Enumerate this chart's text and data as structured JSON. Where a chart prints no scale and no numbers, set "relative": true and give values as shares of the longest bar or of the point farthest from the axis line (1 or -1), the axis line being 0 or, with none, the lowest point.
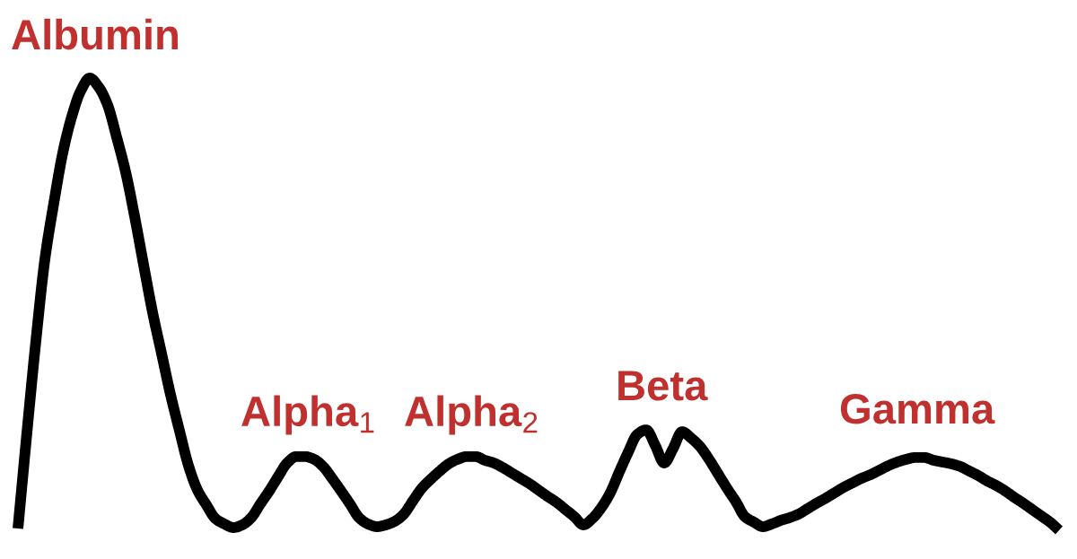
{
  "chart_data": {
    "type": "line",
    "relative": true,
    "categories": [
      null,
      null,
      null,
      null,
      null,
      null,
      null,
      null,
      null,
      null,
      null,
      null,
      null,
      null,
      null,
      null,
      null,
      null,
      null,
      null,
      null,
      null,
      null,
      null,
      null,
      null,
      null,
      null,
      null,
      null,
      null,
      null,
      null,
      null,
      null,
      null,
      null,
      null,
      null,
      null,
      null,
      null,
      null,
      null,
      null,
      null,
      null,
      null,
      null,
      null,
      null,
      null,
      null,
      null,
      null,
      null,
      null,
      null,
      null,
      null,
      null,
      null,
      null,
      null,
      null,
      null,
      null,
      null,
      null,
      null,
      null,
      null,
      null,
      null,
      null,
      null,
      null,
      null,
      null,
      null,
      null,
      null,
      null,
      null,
      null,
      null,
      null,
      null,
      null,
      null,
      null,
      null,
      null,
      null,
      null,
      null,
      null,
      null,
      null,
      null,
      null,
      null,
      null,
      null,
      null,
      null,
      null,
      null,
      null,
      null,
      null,
      null,
      null,
      null,
      null,
      null,
      null
    ],
    "series": [
      {
        "color": "#000000",
        "values": [
          0.004,
          0.216,
          0.419,
          0.599,
          0.724,
          0.835,
          0.915,
          0.972,
          1.0,
          0.98,
          0.94,
          0.869,
          0.792,
          0.694,
          0.587,
          0.482,
          0.391,
          0.3,
          0.22,
          0.143,
          0.089,
          0.056,
          0.026,
          0.014,
          0.006,
          0.012,
          0.028,
          0.058,
          0.087,
          0.119,
          0.149,
          0.163,
          0.163,
          0.157,
          0.141,
          0.115,
          0.087,
          0.058,
          0.028,
          0.014,
          0.008,
          0.012,
          0.02,
          0.036,
          0.065,
          0.093,
          0.113,
          0.131,
          0.147,
          0.157,
          0.163,
          0.163,
          0.155,
          0.149,
          0.139,
          0.127,
          0.115,
          0.103,
          0.089,
          0.075,
          0.062,
          0.046,
          0.03,
          0.012,
          0.026,
          0.05,
          0.083,
          0.129,
          0.173,
          0.212,
          0.222,
          0.188,
          0.149,
          0.181,
          0.218,
          0.204,
          0.185,
          0.157,
          0.125,
          0.093,
          0.063,
          0.03,
          0.018,
          0.008,
          0.014,
          0.022,
          0.028,
          0.036,
          0.048,
          0.06,
          0.071,
          0.083,
          0.095,
          0.105,
          0.115,
          0.123,
          0.133,
          0.143,
          0.151,
          0.157,
          0.161,
          0.161,
          0.155,
          0.151,
          0.147,
          0.141,
          0.131,
          0.121,
          0.109,
          0.099,
          0.087,
          0.073,
          0.06,
          0.046,
          0.032,
          0.018,
          0.0
        ]
      }
    ],
    "annotations": [
      "Albumin",
      "Alpha$_{1}$",
      "Alpha$_{2}$",
      "Beta",
      "Gamma"
    ],
    "line_style": "solid"
  }
}
